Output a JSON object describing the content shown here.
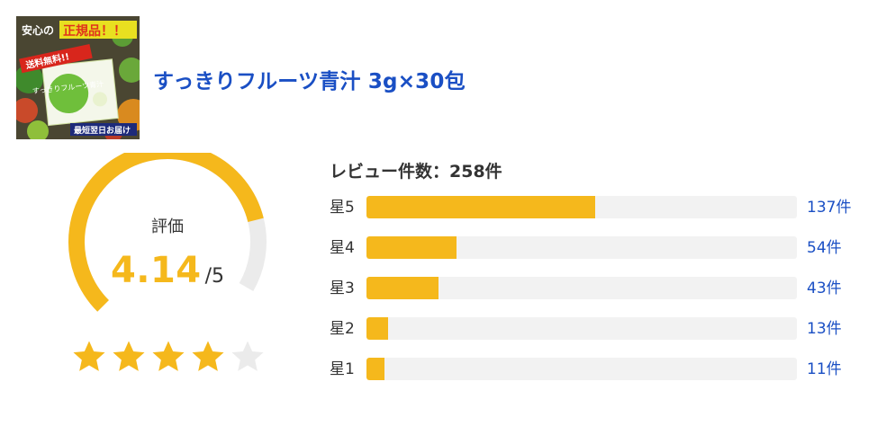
{
  "product": {
    "title": "すっきりフルーツ青汁 3g×30包",
    "image_texts": {
      "safe": "安心の",
      "genuine": "正規品！！",
      "free_shipping": "送料無料!!",
      "package_name": "すっきりフルーツ青汁",
      "delivery": "最短翌日お届け"
    }
  },
  "rating": {
    "label": "評価",
    "score": "4.14",
    "max": "/5",
    "value": 4.14,
    "scale": 5,
    "filled_stars": 4,
    "total_stars": 5
  },
  "reviews": {
    "count_label": "レビュー件数：258件",
    "distribution": [
      {
        "label": "星5",
        "count": 137,
        "count_text": "137件"
      },
      {
        "label": "星4",
        "count": 54,
        "count_text": "54件"
      },
      {
        "label": "星3",
        "count": 43,
        "count_text": "43件"
      },
      {
        "label": "星2",
        "count": 13,
        "count_text": "13件"
      },
      {
        "label": "星1",
        "count": 11,
        "count_text": "11件"
      }
    ],
    "bar_max": 258
  },
  "colors": {
    "accent": "#f5b81c",
    "track": "#ebebeb",
    "link": "#1a4fc4",
    "text": "#333333"
  }
}
